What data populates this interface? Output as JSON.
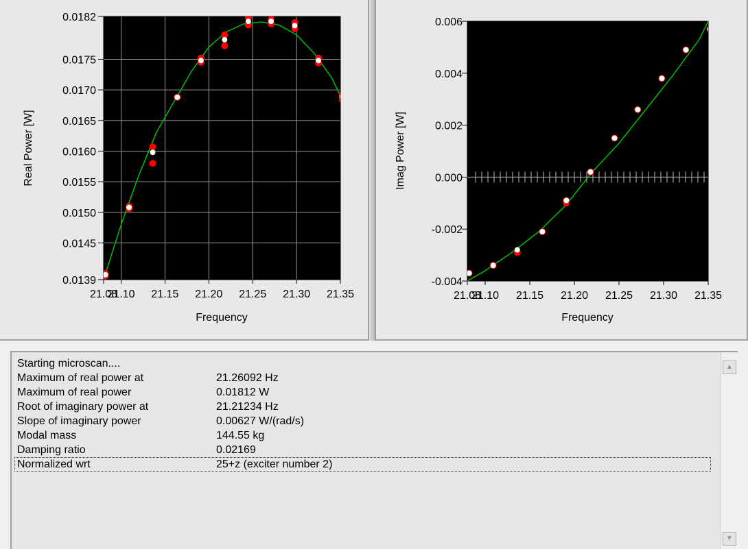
{
  "chart_data": [
    {
      "type": "scatter",
      "xlabel": "Frequency",
      "ylabel": "Real Power [W]",
      "xlim": [
        21.08,
        21.35
      ],
      "ylim": [
        0.0139,
        0.0182
      ],
      "xticks": [
        "21.08",
        "21.10",
        "21.15",
        "21.20",
        "21.25",
        "21.30",
        "21.35"
      ],
      "yticks": [
        "0.0139",
        "0.0145",
        "0.0150",
        "0.0155",
        "0.0160",
        "0.0165",
        "0.0170",
        "0.0175",
        "0.0182"
      ],
      "grid": true,
      "series": [
        {
          "color": "#ff0000",
          "x": [
            21.082,
            21.082,
            21.109,
            21.109,
            21.136,
            21.136,
            21.164,
            21.191,
            21.191,
            21.218,
            21.218,
            21.245,
            21.245,
            21.271,
            21.271,
            21.298,
            21.298,
            21.325,
            21.325,
            21.352,
            21.352
          ],
          "y": [
            0.01396,
            0.014,
            0.01506,
            0.0151,
            0.0158,
            0.01607,
            0.01688,
            0.01745,
            0.01752,
            0.01772,
            0.0179,
            0.01806,
            0.01818,
            0.01808,
            0.01815,
            0.018,
            0.0181,
            0.01744,
            0.01752,
            0.01684,
            0.01693
          ]
        },
        {
          "color": "#ffffff",
          "x": [
            21.082,
            21.109,
            21.136,
            21.164,
            21.191,
            21.218,
            21.245,
            21.271,
            21.298,
            21.325,
            21.352
          ],
          "y": [
            0.01398,
            0.01508,
            0.01598,
            0.01688,
            0.01748,
            0.01782,
            0.01812,
            0.01812,
            0.01805,
            0.01748,
            0.01689
          ]
        },
        {
          "color": "#00c000",
          "line": true,
          "x": [
            21.08,
            21.1,
            21.12,
            21.14,
            21.16,
            21.18,
            21.2,
            21.22,
            21.24,
            21.26,
            21.28,
            21.3,
            21.32,
            21.34,
            21.35
          ],
          "y": [
            0.0139,
            0.0148,
            0.0156,
            0.0163,
            0.0168,
            0.0173,
            0.0177,
            0.01795,
            0.01808,
            0.01811,
            0.01806,
            0.0179,
            0.0176,
            0.0172,
            0.0169
          ]
        }
      ]
    },
    {
      "type": "scatter",
      "xlabel": "Frequency",
      "ylabel": "Imag Power [W]",
      "xlim": [
        21.08,
        21.35
      ],
      "ylim": [
        -0.004,
        0.006
      ],
      "xticks": [
        "21.08",
        "21.10",
        "21.15",
        "21.20",
        "21.25",
        "21.30",
        "21.35"
      ],
      "yticks": [
        "-0.004",
        "-0.002",
        "0.000",
        "0.002",
        "0.004",
        "0.006"
      ],
      "grid": false,
      "series": [
        {
          "color": "#ff0000",
          "x": [
            21.082,
            21.109,
            21.136,
            21.164,
            21.191,
            21.191,
            21.218,
            21.245,
            21.271,
            21.298,
            21.325,
            21.352
          ],
          "y": [
            -0.0037,
            -0.0034,
            -0.0029,
            -0.0021,
            -0.001,
            -0.0009,
            0.0002,
            0.0015,
            0.0026,
            0.0038,
            0.0049,
            0.0057
          ]
        },
        {
          "color": "#ffffff",
          "x": [
            21.082,
            21.109,
            21.136,
            21.164,
            21.191,
            21.218,
            21.245,
            21.271,
            21.298,
            21.325,
            21.352
          ],
          "y": [
            -0.0037,
            -0.0034,
            -0.0028,
            -0.0021,
            -0.0009,
            0.0002,
            0.0015,
            0.0026,
            0.0038,
            0.0049,
            0.0057
          ]
        },
        {
          "color": "#00c000",
          "line": true,
          "x": [
            21.08,
            21.1,
            21.13,
            21.16,
            21.19,
            21.22,
            21.25,
            21.28,
            21.31,
            21.34,
            21.35
          ],
          "y": [
            -0.004,
            -0.0036,
            -0.0029,
            -0.0021,
            -0.0011,
            0.0002,
            0.0013,
            0.0026,
            0.0039,
            0.0053,
            0.006
          ]
        }
      ]
    }
  ],
  "log": {
    "rows": [
      {
        "label": "Starting microscan....",
        "value": ""
      },
      {
        "label": "Maximum of real power at",
        "value": "21.26092 Hz"
      },
      {
        "label": "Maximum of real power",
        "value": "0.01812 W"
      },
      {
        "label": "Root of imaginary power at",
        "value": "21.21234 Hz"
      },
      {
        "label": "Slope of imaginary power",
        "value": "0.00627 W/(rad/s)"
      },
      {
        "label": "Modal mass",
        "value": "144.55 kg"
      },
      {
        "label": "Damping ratio",
        "value": "0.02169"
      },
      {
        "label": "Normalized wrt",
        "value": "25+z (exciter number 2)"
      }
    ],
    "scroll_up_icon": "arrow-up-icon",
    "scroll_down_icon": "arrow-down-icon"
  }
}
